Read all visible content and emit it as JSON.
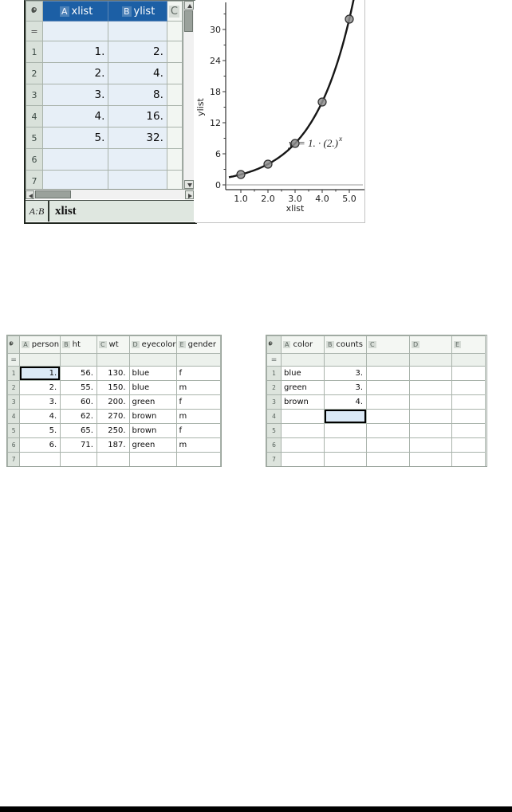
{
  "colors": {
    "selected_header_bg": "#1c5fa5",
    "selected_cells_tint": "#e7eff7",
    "cell_cursor_fill": "#dbe9f6",
    "curve_color": "#161616",
    "point_fill": "#8f8f8f",
    "point_stroke": "#2b2b2b",
    "status_bar_bg": "#dfe7e0"
  },
  "top_sheet": {
    "corner_icon": "sheet-corner-icon",
    "formula_row_symbol": "=",
    "columns": [
      {
        "letter": "A",
        "name": "xlist",
        "selected": true
      },
      {
        "letter": "B",
        "name": "ylist",
        "selected": true
      },
      {
        "letter": "C",
        "name": "",
        "selected": false
      }
    ],
    "rows": [
      {
        "n": "1",
        "cells": [
          "1.",
          "2.",
          ""
        ]
      },
      {
        "n": "2",
        "cells": [
          "2.",
          "4.",
          ""
        ]
      },
      {
        "n": "3",
        "cells": [
          "3.",
          "8.",
          ""
        ]
      },
      {
        "n": "4",
        "cells": [
          "4.",
          "16.",
          ""
        ]
      },
      {
        "n": "5",
        "cells": [
          "5.",
          "32.",
          ""
        ]
      },
      {
        "n": "6",
        "cells": [
          "",
          "",
          ""
        ]
      },
      {
        "n": "7",
        "cells": [
          "",
          "",
          ""
        ]
      }
    ],
    "status_bar": {
      "cell_ref": "A:B",
      "entry": "xlist"
    },
    "scrollbar_icons": [
      "up-arrow-icon",
      "down-arrow-icon",
      "left-arrow-icon",
      "right-arrow-icon"
    ]
  },
  "chart_data": {
    "type": "scatter",
    "x": [
      1,
      2,
      3,
      4,
      5
    ],
    "y": [
      2,
      4,
      8,
      16,
      32
    ],
    "xlabel": "xlist",
    "ylabel": "ylist",
    "x_tick_values": [
      1,
      2,
      3,
      4,
      5
    ],
    "x_tick_labels": [
      "1.0",
      "2.0",
      "3.0",
      "4.0",
      "5.0"
    ],
    "x_minor_ticks": [
      1.5,
      2.5,
      3.5,
      4.5
    ],
    "y_tick_values": [
      0,
      6,
      12,
      18,
      24,
      30
    ],
    "y_tick_labels": [
      "0",
      "6",
      "12",
      "18",
      "24",
      "30"
    ],
    "y_minor_ticks": [
      3,
      9,
      15,
      21,
      27,
      33
    ],
    "xlim": [
      0.56,
      5.25
    ],
    "ylim": [
      -0.9,
      35.8
    ],
    "grid": false,
    "legend": null,
    "fit_curve": {
      "type": "exponential",
      "a": 1,
      "b": 2,
      "label_text": "y = 1. · (2.)^x",
      "label_parts": {
        "overlapped": "y",
        "body": "= 1. · (2.)",
        "superscript": "x"
      },
      "label_anchor_point": {
        "x": 3,
        "y": 8
      }
    }
  },
  "person_sheet": {
    "corner_icon": "sheet-corner-icon",
    "formula_row_symbol": "=",
    "selected_cell": {
      "col": "A",
      "row": 1
    },
    "columns": [
      {
        "letter": "A",
        "name": "person",
        "selected": false
      },
      {
        "letter": "B",
        "name": "ht",
        "selected": false
      },
      {
        "letter": "C",
        "name": "wt",
        "selected": false
      },
      {
        "letter": "D",
        "name": "eyecolor",
        "selected": false
      },
      {
        "letter": "E",
        "name": "gender",
        "selected": false
      }
    ],
    "rows": [
      {
        "n": "1",
        "cells": [
          "1.",
          "56.",
          "130.",
          "blue",
          "f"
        ]
      },
      {
        "n": "2",
        "cells": [
          "2.",
          "55.",
          "150.",
          "blue",
          "m"
        ]
      },
      {
        "n": "3",
        "cells": [
          "3.",
          "60.",
          "200.",
          "green",
          "f"
        ]
      },
      {
        "n": "4",
        "cells": [
          "4.",
          "62.",
          "270.",
          "brown",
          "m"
        ]
      },
      {
        "n": "5",
        "cells": [
          "5.",
          "65.",
          "250.",
          "brown",
          "f"
        ]
      },
      {
        "n": "6",
        "cells": [
          "6.",
          "71.",
          "187.",
          "green",
          "m"
        ]
      },
      {
        "n": "7",
        "cells": [
          "",
          "",
          "",
          "",
          ""
        ]
      }
    ]
  },
  "color_sheet": {
    "corner_icon": "sheet-corner-icon",
    "formula_row_symbol": "=",
    "selected_cell": {
      "col": "B",
      "row": 4
    },
    "columns": [
      {
        "letter": "A",
        "name": "color",
        "selected": false
      },
      {
        "letter": "B",
        "name": "counts",
        "selected": false
      },
      {
        "letter": "C",
        "name": "",
        "selected": false
      },
      {
        "letter": "D",
        "name": "",
        "selected": false
      },
      {
        "letter": "E",
        "name": "",
        "selected": false
      }
    ],
    "rows": [
      {
        "n": "1",
        "cells": [
          "blue",
          "3.",
          "",
          "",
          ""
        ]
      },
      {
        "n": "2",
        "cells": [
          "green",
          "3.",
          "",
          "",
          ""
        ]
      },
      {
        "n": "3",
        "cells": [
          "brown",
          "4.",
          "",
          "",
          ""
        ]
      },
      {
        "n": "4",
        "cells": [
          "",
          "",
          "",
          "",
          ""
        ]
      },
      {
        "n": "5",
        "cells": [
          "",
          "",
          "",
          "",
          ""
        ]
      },
      {
        "n": "6",
        "cells": [
          "",
          "",
          "",
          "",
          ""
        ]
      },
      {
        "n": "7",
        "cells": [
          "",
          "",
          "",
          "",
          ""
        ]
      }
    ]
  }
}
